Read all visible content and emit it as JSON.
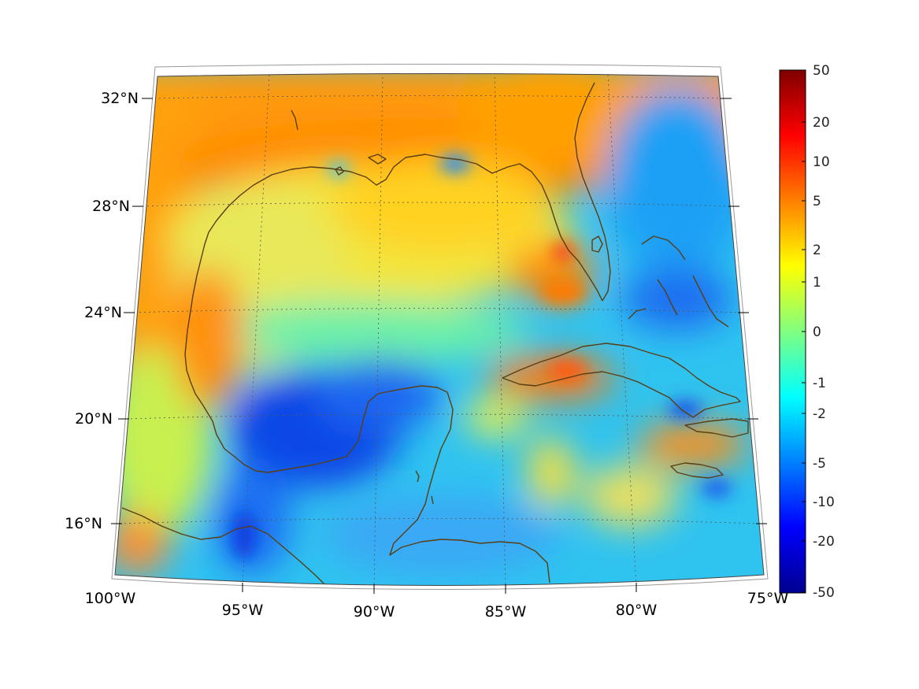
{
  "map": {
    "projection": "conic",
    "extent": {
      "lon": [
        -100,
        -75
      ],
      "lat": [
        14,
        33
      ]
    },
    "lat_ticks": [
      {
        "value": 32,
        "label": "32°N"
      },
      {
        "value": 28,
        "label": "28°N"
      },
      {
        "value": 24,
        "label": "24°N"
      },
      {
        "value": 20,
        "label": "20°N"
      },
      {
        "value": 16,
        "label": "16°N"
      }
    ],
    "lon_ticks": [
      {
        "value": -100,
        "label": "100°W"
      },
      {
        "value": -95,
        "label": "95°W"
      },
      {
        "value": -90,
        "label": "90°W"
      },
      {
        "value": -85,
        "label": "85°W"
      },
      {
        "value": -80,
        "label": "80°W"
      },
      {
        "value": -75,
        "label": "75°W"
      }
    ],
    "coastline_color": "#5a3e12",
    "gridlines": "dotted"
  },
  "colorbar": {
    "colormap": "jet",
    "scale": "symmetric-log",
    "range": [
      -50,
      50
    ],
    "ticks": [
      {
        "value": 50,
        "label": "50"
      },
      {
        "value": 20,
        "label": "20"
      },
      {
        "value": 10,
        "label": "10"
      },
      {
        "value": 5,
        "label": "5"
      },
      {
        "value": 2,
        "label": "2"
      },
      {
        "value": 1,
        "label": "1"
      },
      {
        "value": 0,
        "label": "0"
      },
      {
        "value": -1,
        "label": "-1"
      },
      {
        "value": -2,
        "label": "-2"
      },
      {
        "value": -5,
        "label": "-5"
      },
      {
        "value": -10,
        "label": "-10"
      },
      {
        "value": -20,
        "label": "-20"
      },
      {
        "value": -50,
        "label": "-50"
      }
    ]
  }
}
